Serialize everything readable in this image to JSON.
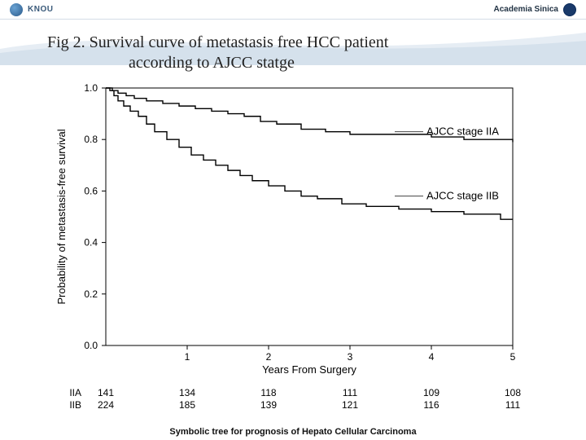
{
  "header": {
    "left_text": "KNOU",
    "right_text": "Academia Sinica"
  },
  "title": {
    "line1": "Fig 2. Survival curve of metastasis free HCC patient",
    "line2": "according to AJCC statge"
  },
  "chart": {
    "type": "kaplan-meier",
    "xlabel": "Years From Surgery",
    "ylabel": "Probability of metastasis-free survival",
    "xlim": [
      0,
      5
    ],
    "ylim": [
      0.0,
      1.0
    ],
    "xticks": [
      1,
      2,
      3,
      4,
      5
    ],
    "yticks": [
      0.0,
      0.2,
      0.4,
      0.6,
      0.8,
      1.0
    ],
    "ytick_labels": [
      "0.0",
      "0.2",
      "0.4",
      "0.6",
      "0.8",
      "1.0"
    ],
    "line_color": "#000000",
    "line_width": 1.4,
    "background_color": "#ffffff",
    "series": [
      {
        "name": "AJCC stage IIA",
        "label_x": 3.9,
        "label_y": 0.83,
        "points": [
          [
            0.0,
            1.0
          ],
          [
            0.08,
            0.99
          ],
          [
            0.15,
            0.98
          ],
          [
            0.25,
            0.97
          ],
          [
            0.35,
            0.96
          ],
          [
            0.5,
            0.95
          ],
          [
            0.7,
            0.94
          ],
          [
            0.9,
            0.93
          ],
          [
            1.1,
            0.92
          ],
          [
            1.3,
            0.91
          ],
          [
            1.5,
            0.9
          ],
          [
            1.7,
            0.89
          ],
          [
            1.9,
            0.87
          ],
          [
            2.1,
            0.86
          ],
          [
            2.4,
            0.84
          ],
          [
            2.7,
            0.83
          ],
          [
            3.0,
            0.82
          ],
          [
            3.5,
            0.82
          ],
          [
            4.0,
            0.81
          ],
          [
            4.4,
            0.8
          ],
          [
            4.8,
            0.8
          ],
          [
            5.0,
            0.79
          ]
        ]
      },
      {
        "name": "AJCC stage IIB",
        "label_x": 3.9,
        "label_y": 0.58,
        "points": [
          [
            0.0,
            1.0
          ],
          [
            0.05,
            0.99
          ],
          [
            0.1,
            0.97
          ],
          [
            0.15,
            0.95
          ],
          [
            0.22,
            0.93
          ],
          [
            0.3,
            0.91
          ],
          [
            0.4,
            0.89
          ],
          [
            0.5,
            0.86
          ],
          [
            0.6,
            0.83
          ],
          [
            0.75,
            0.8
          ],
          [
            0.9,
            0.77
          ],
          [
            1.05,
            0.74
          ],
          [
            1.2,
            0.72
          ],
          [
            1.35,
            0.7
          ],
          [
            1.5,
            0.68
          ],
          [
            1.65,
            0.66
          ],
          [
            1.8,
            0.64
          ],
          [
            2.0,
            0.62
          ],
          [
            2.2,
            0.6
          ],
          [
            2.4,
            0.58
          ],
          [
            2.6,
            0.57
          ],
          [
            2.9,
            0.55
          ],
          [
            3.2,
            0.54
          ],
          [
            3.6,
            0.53
          ],
          [
            4.0,
            0.52
          ],
          [
            4.4,
            0.51
          ],
          [
            4.7,
            0.51
          ],
          [
            4.85,
            0.49
          ],
          [
            5.0,
            0.49
          ]
        ]
      }
    ],
    "risk_table": {
      "row_labels": [
        "IIA",
        "IIB"
      ],
      "columns_at_x": [
        0,
        1,
        2,
        3,
        4,
        5
      ],
      "rows": [
        [
          141,
          134,
          118,
          111,
          109,
          108
        ],
        [
          224,
          185,
          139,
          121,
          116,
          111
        ]
      ]
    }
  },
  "footer": "Symbolic tree for prognosis of Hepato Cellular Carcinoma",
  "colors": {
    "wave_light": "#e6edf4",
    "wave_mid": "#c9d8e6",
    "text_title": "#222222"
  }
}
